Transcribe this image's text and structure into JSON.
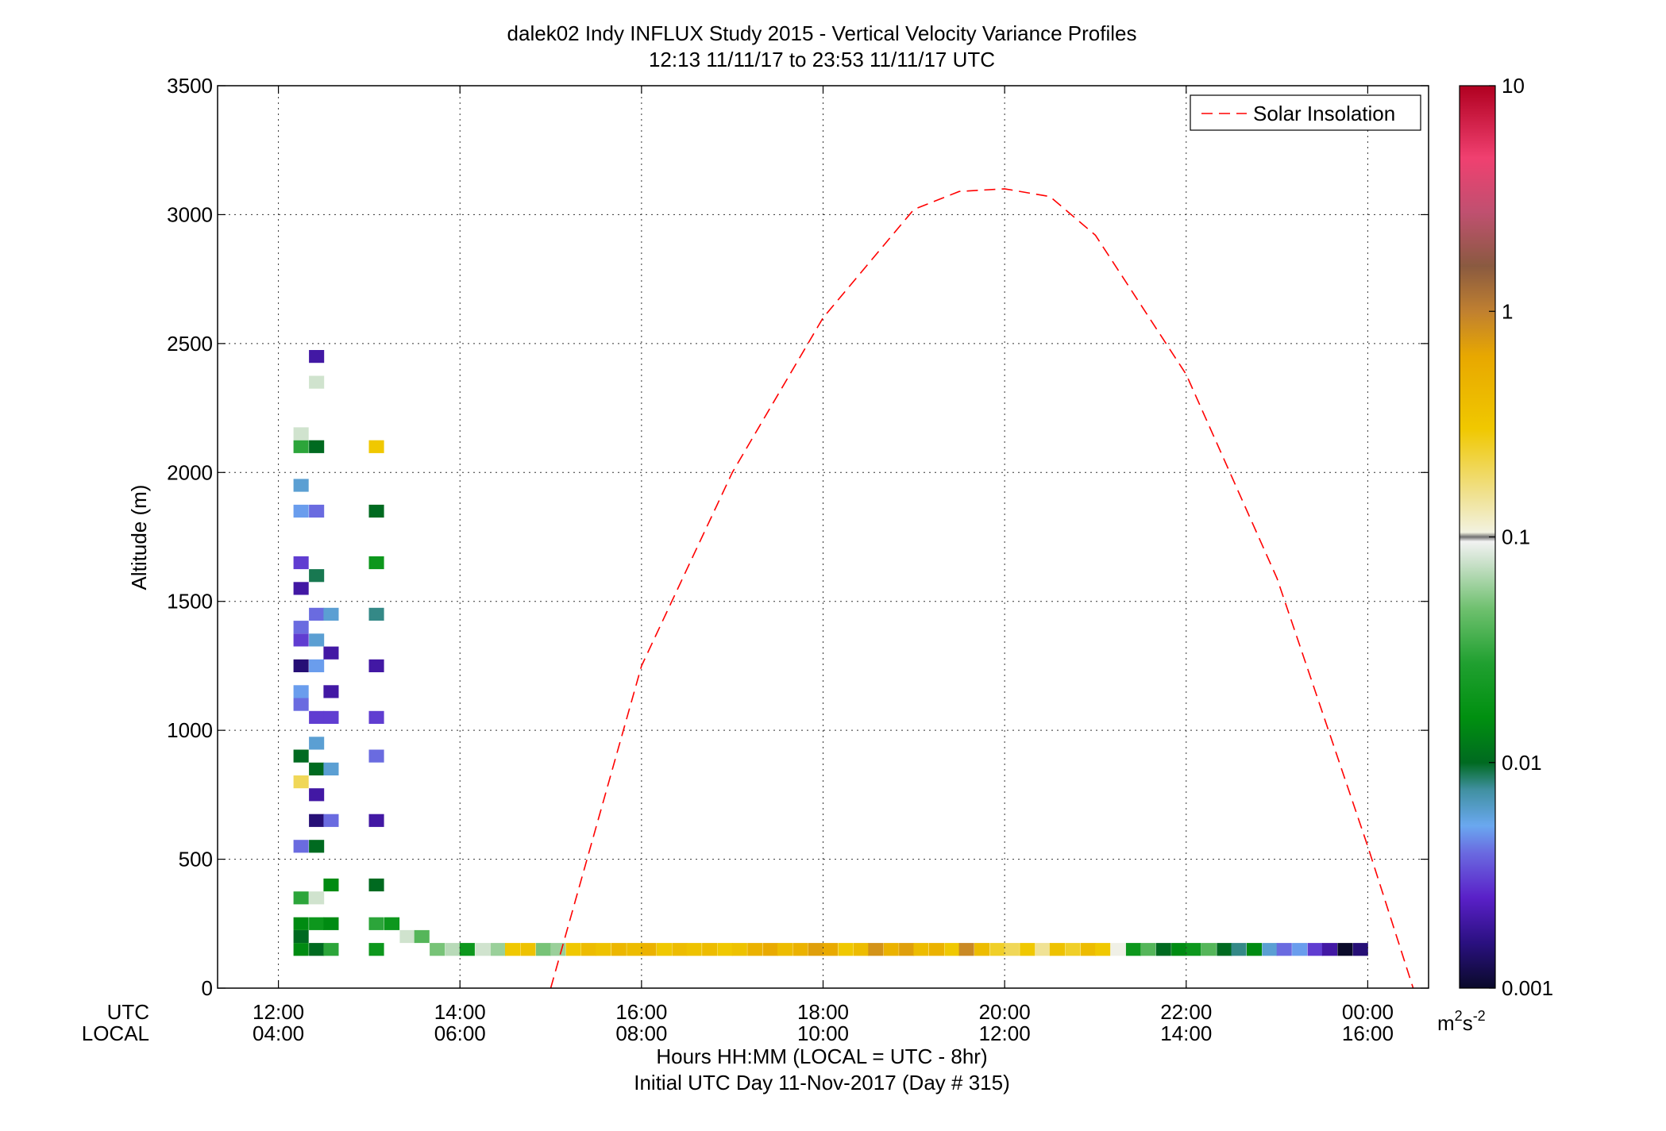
{
  "title_line1": "dalek02 Indy INFLUX Study 2015 - Vertical Velocity Variance Profiles",
  "title_line2": "12:13 11/11/17 to 23:53 11/11/17  UTC",
  "ylabel": "Altitude (m)",
  "xlabel_line1": "Hours HH:MM  (LOCAL = UTC - 8hr)",
  "xlabel_line2": "Initial UTC Day 11-Nov-2017 (Day # 315)",
  "row_label_utc": "UTC",
  "row_label_local": "LOCAL",
  "legend_label": "Solar Insolation",
  "colorbar_unit_base": "m",
  "colorbar_unit_exp1": "2",
  "colorbar_unit_mid": "s",
  "colorbar_unit_exp2": "-2",
  "chart_data": {
    "type": "heatmap",
    "title": "dalek02 Indy INFLUX Study 2015 - Vertical Velocity Variance Profiles",
    "subtitle": "12:13 11/11/17 to 23:53 11/11/17  UTC",
    "xlabel": "Hours HH:MM  (LOCAL = UTC - 8hr)",
    "ylabel": "Altitude (m)",
    "xlim": [
      11.33,
      24.67
    ],
    "ylim": [
      0,
      3500
    ],
    "x_ticks": [
      12,
      14,
      16,
      18,
      20,
      22,
      24
    ],
    "x_tick_labels_utc": [
      "12:00",
      "14:00",
      "16:00",
      "18:00",
      "20:00",
      "22:00",
      "00:00"
    ],
    "x_tick_labels_local": [
      "04:00",
      "06:00",
      "08:00",
      "10:00",
      "12:00",
      "14:00",
      "16:00"
    ],
    "y_ticks": [
      0,
      500,
      1000,
      1500,
      2000,
      2500,
      3000,
      3500
    ],
    "y_tick_labels": [
      "0",
      "500",
      "1000",
      "1500",
      "2000",
      "2500",
      "3000",
      "3500"
    ],
    "grid": true,
    "legend_placement": "top-right",
    "series": [
      {
        "name": "Solar Insolation",
        "style": "dashed",
        "color": "#ff0000",
        "x": [
          15.0,
          16.0,
          17.0,
          18.0,
          19.0,
          19.5,
          20.0,
          20.5,
          21.0,
          22.0,
          23.0,
          24.0,
          24.5
        ],
        "y": [
          0,
          1250,
          2000,
          2600,
          3020,
          3090,
          3100,
          3070,
          2920,
          2380,
          1590,
          550,
          0
        ]
      }
    ],
    "colorbar": {
      "scale": "log",
      "range": [
        0.001,
        10
      ],
      "tick_values": [
        0.001,
        0.01,
        0.1,
        1,
        10
      ],
      "tick_labels": [
        "0.001",
        "0.01",
        "0.1",
        "1",
        "10"
      ],
      "unit": "m2s-2"
    },
    "heatmap_cells": {
      "description_units": "x = UTC hour, y = altitude m, v = variance m2s-2",
      "x_step_hours": 0.1667,
      "y_step_m": 50,
      "cells": [
        [
          12.25,
          150,
          0.015
        ],
        [
          12.25,
          200,
          0.01
        ],
        [
          12.25,
          250,
          0.015
        ],
        [
          12.25,
          350,
          0.03
        ],
        [
          12.25,
          550,
          0.004
        ],
        [
          12.25,
          800,
          0.2
        ],
        [
          12.25,
          900,
          0.01
        ],
        [
          12.25,
          1100,
          0.004
        ],
        [
          12.25,
          1150,
          0.005
        ],
        [
          12.25,
          1250,
          0.0015
        ],
        [
          12.25,
          1350,
          0.003
        ],
        [
          12.25,
          1400,
          0.004
        ],
        [
          12.25,
          1550,
          0.002
        ],
        [
          12.25,
          1650,
          0.003
        ],
        [
          12.25,
          1850,
          0.005
        ],
        [
          12.25,
          1950,
          0.006
        ],
        [
          12.25,
          2100,
          0.03
        ],
        [
          12.25,
          2150,
          0.08
        ],
        [
          12.42,
          150,
          0.01
        ],
        [
          12.42,
          250,
          0.02
        ],
        [
          12.42,
          350,
          0.08
        ],
        [
          12.42,
          550,
          0.01
        ],
        [
          12.42,
          650,
          0.0015
        ],
        [
          12.42,
          750,
          0.002
        ],
        [
          12.42,
          850,
          0.01
        ],
        [
          12.42,
          950,
          0.006
        ],
        [
          12.42,
          1050,
          0.003
        ],
        [
          12.42,
          1250,
          0.005
        ],
        [
          12.42,
          1350,
          0.006
        ],
        [
          12.42,
          1450,
          0.004
        ],
        [
          12.42,
          1600,
          0.009
        ],
        [
          12.42,
          1850,
          0.004
        ],
        [
          12.42,
          2100,
          0.01
        ],
        [
          12.42,
          2450,
          0.002
        ],
        [
          12.42,
          2350,
          0.08
        ],
        [
          12.58,
          150,
          0.03
        ],
        [
          12.58,
          250,
          0.015
        ],
        [
          12.58,
          400,
          0.015
        ],
        [
          12.58,
          650,
          0.004
        ],
        [
          12.58,
          850,
          0.006
        ],
        [
          12.58,
          1050,
          0.003
        ],
        [
          12.58,
          1150,
          0.002
        ],
        [
          12.58,
          1300,
          0.002
        ],
        [
          12.58,
          1450,
          0.006
        ],
        [
          13.08,
          150,
          0.02
        ],
        [
          13.08,
          250,
          0.03
        ],
        [
          13.08,
          400,
          0.01
        ],
        [
          13.08,
          650,
          0.002
        ],
        [
          13.08,
          900,
          0.004
        ],
        [
          13.08,
          1050,
          0.003
        ],
        [
          13.08,
          1250,
          0.002
        ],
        [
          13.08,
          1450,
          0.008
        ],
        [
          13.08,
          1650,
          0.02
        ],
        [
          13.08,
          1850,
          0.01
        ],
        [
          13.08,
          2100,
          0.3
        ],
        [
          13.25,
          250,
          0.02
        ],
        [
          13.42,
          200,
          0.08
        ],
        [
          13.58,
          200,
          0.04
        ],
        [
          13.75,
          150,
          0.05
        ],
        [
          13.92,
          150,
          0.07
        ],
        [
          14.08,
          150,
          0.02
        ],
        [
          14.25,
          150,
          0.08
        ],
        [
          14.42,
          150,
          0.06
        ],
        [
          14.58,
          150,
          0.3
        ],
        [
          14.75,
          150,
          0.35
        ],
        [
          14.92,
          150,
          0.05
        ],
        [
          15.08,
          150,
          0.06
        ],
        [
          15.25,
          150,
          0.3
        ],
        [
          15.42,
          150,
          0.4
        ],
        [
          15.58,
          150,
          0.35
        ],
        [
          15.75,
          150,
          0.45
        ],
        [
          15.92,
          150,
          0.4
        ],
        [
          16.08,
          150,
          0.5
        ],
        [
          16.25,
          150,
          0.3
        ],
        [
          16.42,
          150,
          0.4
        ],
        [
          16.58,
          150,
          0.35
        ],
        [
          16.75,
          150,
          0.4
        ],
        [
          16.92,
          150,
          0.3
        ],
        [
          17.08,
          150,
          0.35
        ],
        [
          17.25,
          150,
          0.5
        ],
        [
          17.42,
          150,
          0.6
        ],
        [
          17.58,
          150,
          0.4
        ],
        [
          17.75,
          150,
          0.5
        ],
        [
          17.92,
          150,
          0.7
        ],
        [
          18.08,
          150,
          0.6
        ],
        [
          18.25,
          150,
          0.3
        ],
        [
          18.42,
          150,
          0.4
        ],
        [
          18.58,
          150,
          0.8
        ],
        [
          18.75,
          150,
          0.5
        ],
        [
          18.92,
          150,
          0.7
        ],
        [
          19.08,
          150,
          0.4
        ],
        [
          19.25,
          150,
          0.5
        ],
        [
          19.42,
          150,
          0.3
        ],
        [
          19.58,
          150,
          0.9
        ],
        [
          19.75,
          150,
          0.4
        ],
        [
          19.92,
          150,
          0.25
        ],
        [
          20.08,
          150,
          0.2
        ],
        [
          20.25,
          150,
          0.3
        ],
        [
          20.42,
          150,
          0.15
        ],
        [
          20.58,
          150,
          0.35
        ],
        [
          20.75,
          150,
          0.25
        ],
        [
          20.92,
          150,
          0.4
        ],
        [
          21.08,
          150,
          0.3
        ],
        [
          21.25,
          150,
          0.1
        ],
        [
          21.42,
          150,
          0.02
        ],
        [
          21.58,
          150,
          0.04
        ],
        [
          21.75,
          150,
          0.01
        ],
        [
          21.92,
          150,
          0.015
        ],
        [
          22.08,
          150,
          0.02
        ],
        [
          22.25,
          150,
          0.04
        ],
        [
          22.42,
          150,
          0.01
        ],
        [
          22.58,
          150,
          0.008
        ],
        [
          22.75,
          150,
          0.015
        ],
        [
          22.92,
          150,
          0.006
        ],
        [
          23.08,
          150,
          0.004
        ],
        [
          23.25,
          150,
          0.005
        ],
        [
          23.42,
          150,
          0.003
        ],
        [
          23.58,
          150,
          0.002
        ],
        [
          23.75,
          150,
          0.001
        ],
        [
          23.92,
          150,
          0.0015
        ]
      ]
    }
  }
}
